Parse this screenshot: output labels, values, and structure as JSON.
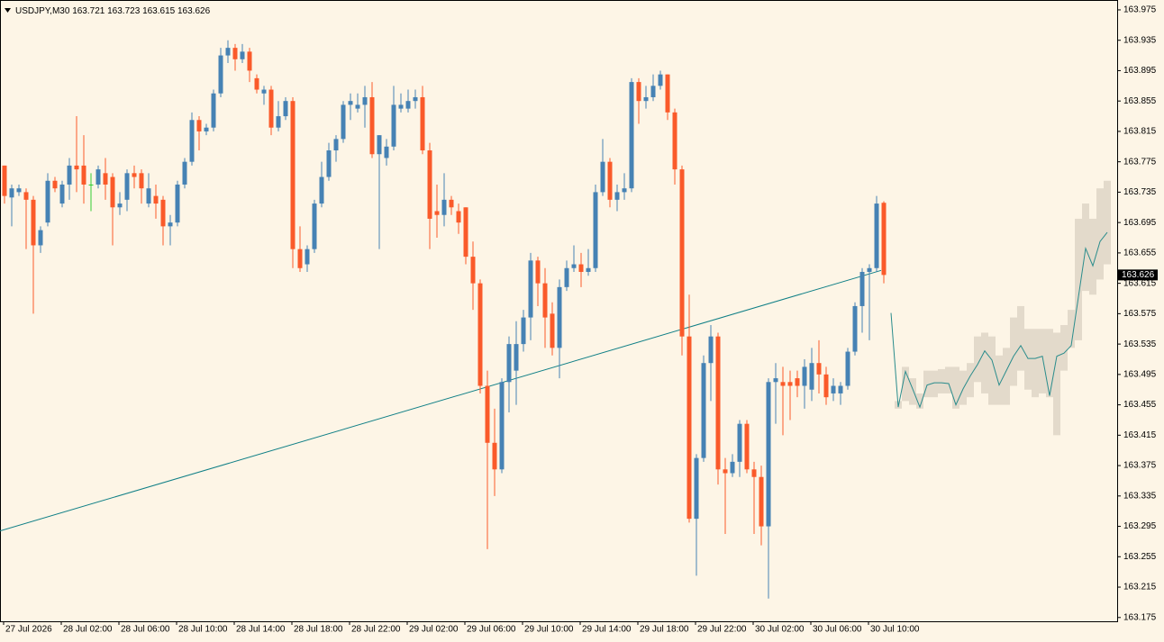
{
  "chart_data": {
    "type": "candlestick",
    "title": "USDJPY,M30",
    "categories": [
      "27 Jul 2026",
      null,
      null,
      null,
      null,
      null,
      null,
      null,
      "28 Jul 02:00",
      null,
      null,
      null,
      null,
      null,
      null,
      null,
      "28 Jul 06:00",
      null,
      null,
      null,
      null,
      null,
      null,
      null,
      "28 Jul 10:00",
      null,
      null,
      null,
      null,
      null,
      null,
      null,
      "28 Jul 14:00",
      null,
      null,
      null,
      null,
      null,
      null,
      null,
      "28 Jul 18:00",
      null,
      null,
      null,
      null,
      null,
      null,
      null,
      "28 Jul 22:00",
      null,
      null,
      null,
      null,
      null,
      null,
      null,
      "29 Jul 02:00",
      null,
      null,
      null,
      null,
      null,
      null,
      null,
      "29 Jul 06:00",
      null,
      null,
      null,
      null,
      null,
      null,
      null,
      "29 Jul 10:00",
      null,
      null,
      null,
      null,
      null,
      null,
      null,
      "29 Jul 14:00",
      null,
      null,
      null,
      null,
      null,
      null,
      null,
      "29 Jul 18:00",
      null,
      null,
      null,
      null,
      null,
      null,
      null,
      "29 Jul 22:00",
      null,
      null,
      null,
      null,
      null,
      null,
      null,
      "30 Jul 02:00",
      null,
      null,
      null,
      null,
      null,
      null,
      null,
      "30 Jul 06:00",
      null,
      null,
      null,
      null,
      null,
      null,
      null,
      "30 Jul 10:00",
      null,
      null
    ],
    "open": [
      163.77,
      163.728,
      163.735,
      163.735,
      163.725,
      163.665,
      163.695,
      163.75,
      163.72,
      163.745,
      163.77,
      163.77,
      163.745,
      163.745,
      163.76,
      163.755,
      163.715,
      163.725,
      163.76,
      163.76,
      163.72,
      163.73,
      163.725,
      163.69,
      163.695,
      163.745,
      163.775,
      163.83,
      163.815,
      163.82,
      163.865,
      163.915,
      163.925,
      163.91,
      163.92,
      163.885,
      163.865,
      163.87,
      163.82,
      163.835,
      163.855,
      163.66,
      163.64,
      163.66,
      163.72,
      163.755,
      163.79,
      163.805,
      163.85,
      163.845,
      163.85,
      163.86,
      163.785,
      163.78,
      163.795,
      163.845,
      163.845,
      163.855,
      163.86,
      163.79,
      163.71,
      163.705,
      163.725,
      163.71,
      163.715,
      163.65,
      163.615,
      163.48,
      163.405,
      163.37,
      163.485,
      163.5,
      163.535,
      163.57,
      163.645,
      163.615,
      163.575,
      163.53,
      163.61,
      163.635,
      163.64,
      163.63,
      163.635,
      163.735,
      163.775,
      163.725,
      163.735,
      163.74,
      163.88,
      163.855,
      163.86,
      163.875,
      163.89,
      163.84,
      163.765,
      163.545,
      163.305,
      163.385,
      163.51,
      163.545,
      163.37,
      163.365,
      163.38,
      163.43,
      163.37,
      163.36,
      163.295,
      163.485,
      163.485,
      163.485,
      163.49,
      163.48,
      163.475,
      163.51,
      163.495,
      163.47,
      163.47,
      163.48,
      163.525,
      163.585,
      163.63,
      163.635,
      163.721
    ],
    "high": [
      163.77,
      163.745,
      163.745,
      163.74,
      163.73,
      163.69,
      163.76,
      163.755,
      163.75,
      163.78,
      163.835,
      163.81,
      163.76,
      163.77,
      163.78,
      163.76,
      163.735,
      163.765,
      163.77,
      163.765,
      163.76,
      163.745,
      163.73,
      163.705,
      163.75,
      163.78,
      163.84,
      163.835,
      163.825,
      163.87,
      163.925,
      163.935,
      163.93,
      163.93,
      163.925,
      163.89,
      163.875,
      163.875,
      163.855,
      163.86,
      163.86,
      163.69,
      163.665,
      163.725,
      163.775,
      163.8,
      163.81,
      163.855,
      163.865,
      163.865,
      163.875,
      163.88,
      163.81,
      163.805,
      163.875,
      163.865,
      163.87,
      163.87,
      163.875,
      163.8,
      163.745,
      163.76,
      163.73,
      163.72,
      163.715,
      163.67,
      163.62,
      163.5,
      163.45,
      163.49,
      163.545,
      163.565,
      163.58,
      163.655,
      163.65,
      163.635,
      163.59,
      163.62,
      163.645,
      163.665,
      163.655,
      163.66,
      163.745,
      163.805,
      163.78,
      163.745,
      163.76,
      163.885,
      163.885,
      163.875,
      163.89,
      163.895,
      163.89,
      163.845,
      163.77,
      163.6,
      163.39,
      163.52,
      163.56,
      163.55,
      163.385,
      163.39,
      163.435,
      163.435,
      163.38,
      163.375,
      163.49,
      163.51,
      163.505,
      163.5,
      163.5,
      163.515,
      163.53,
      163.54,
      163.505,
      163.49,
      163.485,
      163.53,
      163.59,
      163.635,
      163.64,
      163.73,
      163.723
    ],
    "low": [
      163.72,
      163.69,
      163.73,
      163.66,
      163.575,
      163.655,
      163.69,
      163.735,
      163.715,
      163.725,
      163.735,
      163.72,
      163.71,
      163.74,
      163.725,
      163.665,
      163.705,
      163.71,
      163.74,
      163.72,
      163.715,
      163.7,
      163.665,
      163.665,
      163.69,
      163.74,
      163.77,
      163.79,
      163.81,
      163.815,
      163.86,
      163.905,
      163.895,
      163.905,
      163.88,
      163.865,
      163.85,
      163.81,
      163.815,
      163.83,
      163.635,
      163.63,
      163.63,
      163.655,
      163.715,
      163.75,
      163.775,
      163.8,
      163.83,
      163.84,
      163.82,
      163.78,
      163.66,
      163.77,
      163.79,
      163.84,
      163.84,
      163.845,
      163.785,
      163.66,
      163.675,
      163.69,
      163.705,
      163.68,
      163.64,
      163.58,
      163.47,
      163.265,
      163.335,
      163.365,
      163.445,
      163.455,
      163.525,
      163.54,
      163.585,
      163.53,
      163.52,
      163.49,
      163.605,
      163.63,
      163.61,
      163.625,
      163.63,
      163.73,
      163.715,
      163.71,
      163.725,
      163.735,
      163.825,
      163.845,
      163.855,
      163.87,
      163.83,
      163.745,
      163.52,
      163.3,
      163.23,
      163.38,
      163.46,
      163.35,
      163.285,
      163.36,
      163.36,
      163.365,
      163.285,
      163.27,
      163.2,
      163.43,
      163.415,
      163.435,
      163.465,
      163.45,
      163.46,
      163.47,
      163.455,
      163.46,
      163.455,
      163.475,
      163.52,
      163.55,
      163.54,
      163.63,
      163.615
    ],
    "close": [
      163.73,
      163.74,
      163.74,
      163.725,
      163.665,
      163.685,
      163.75,
      163.74,
      163.745,
      163.77,
      163.765,
      163.745,
      163.745,
      163.765,
      163.745,
      163.715,
      163.72,
      163.76,
      163.755,
      163.74,
      163.74,
      163.72,
      163.69,
      163.695,
      163.745,
      163.775,
      163.83,
      163.815,
      163.82,
      163.865,
      163.915,
      163.925,
      163.91,
      163.92,
      163.895,
      163.87,
      163.87,
      163.82,
      163.835,
      163.855,
      163.66,
      163.635,
      163.66,
      163.72,
      163.755,
      163.79,
      163.805,
      163.85,
      163.855,
      163.85,
      163.86,
      163.785,
      163.81,
      163.795,
      163.85,
      163.85,
      163.855,
      163.86,
      163.79,
      163.7,
      163.705,
      163.725,
      163.715,
      163.695,
      163.65,
      163.615,
      163.48,
      163.405,
      163.37,
      163.485,
      163.535,
      163.535,
      163.57,
      163.645,
      163.615,
      163.57,
      163.53,
      163.61,
      163.635,
      163.64,
      163.63,
      163.635,
      163.735,
      163.775,
      163.725,
      163.735,
      163.74,
      163.88,
      163.855,
      163.86,
      163.875,
      163.89,
      163.84,
      163.765,
      163.545,
      163.305,
      163.385,
      163.51,
      163.545,
      163.37,
      163.365,
      163.38,
      163.43,
      163.37,
      163.36,
      163.295,
      163.485,
      163.49,
      163.48,
      163.48,
      163.48,
      163.505,
      163.51,
      163.495,
      163.465,
      163.48,
      163.48,
      163.525,
      163.585,
      163.63,
      163.635,
      163.72,
      163.626
    ],
    "up_color": "#4682b4",
    "down_color": "#fa5a2a",
    "doji_color": "#32cd32",
    "trendline": {
      "start": 163.289,
      "end": 163.632,
      "color": "#0f7f86"
    },
    "forecast": {
      "color": "#2a8c8c",
      "band_color": "#e3dacb",
      "values": [
        163.576,
        163.452,
        163.499,
        163.476,
        163.452,
        163.481,
        163.484,
        163.484,
        163.483,
        163.455,
        163.476,
        163.493,
        163.508,
        163.526,
        163.514,
        163.481,
        163.5,
        163.519,
        163.533,
        163.516,
        163.516,
        163.519,
        163.467,
        163.519,
        163.523,
        163.533,
        163.597,
        163.661,
        163.638,
        163.67,
        163.682
      ],
      "high": [
        null,
        163.46,
        163.505,
        163.49,
        163.47,
        163.5,
        163.5,
        163.502,
        163.505,
        163.505,
        163.5,
        163.51,
        163.545,
        163.55,
        163.545,
        163.52,
        163.53,
        163.57,
        163.585,
        163.555,
        163.555,
        163.555,
        163.555,
        163.55,
        163.56,
        163.58,
        163.7,
        163.72,
        163.7,
        163.74,
        163.75
      ],
      "low": [
        null,
        163.45,
        163.46,
        163.455,
        163.45,
        163.465,
        163.465,
        163.47,
        163.47,
        163.45,
        163.455,
        163.465,
        163.485,
        163.47,
        163.455,
        163.455,
        163.455,
        163.48,
        163.5,
        163.475,
        163.465,
        163.47,
        163.465,
        163.415,
        163.5,
        163.53,
        163.54,
        163.605,
        163.6,
        163.62,
        163.64
      ]
    },
    "ylim": [
      163.17,
      163.988
    ],
    "yticks": [
      163.975,
      163.935,
      163.895,
      163.855,
      163.815,
      163.775,
      163.735,
      163.695,
      163.655,
      163.615,
      163.575,
      163.535,
      163.495,
      163.455,
      163.415,
      163.375,
      163.335,
      163.295,
      163.255,
      163.215,
      163.175
    ]
  }
}
